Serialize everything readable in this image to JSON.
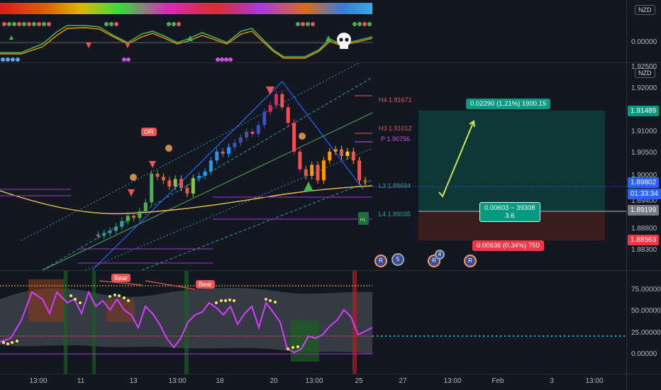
{
  "currency": "NZD",
  "colors": {
    "bg": "#131722",
    "up": "#26a69a",
    "down": "#ef5350",
    "gold": "#f0c419",
    "purple": "#b02cd9"
  },
  "top_indicator": {
    "value_label": "0.00000"
  },
  "price_axis": {
    "ticks": [
      "1.92500",
      "1.92000",
      "1.91000",
      "1.90500",
      "1.90000",
      "1.89400",
      "1.88800",
      "1.88300"
    ],
    "tags": [
      {
        "text": "1.91489",
        "color": "#089981"
      },
      {
        "text": "1.89802",
        "color": "#2962ff"
      },
      {
        "text": "01:33:34",
        "color": "#2962ff"
      },
      {
        "text": "1.89199",
        "color": "#787b86"
      },
      {
        "text": "1.88563",
        "color": "#f23645"
      }
    ]
  },
  "pivots": [
    {
      "label": "H4 1.91671",
      "color": "#ef5350"
    },
    {
      "label": "H3 1.91012",
      "color": "#e05555"
    },
    {
      "label": "P 1.90756",
      "color": "#c850e0"
    },
    {
      "label": "L3 1.89694",
      "color": "#26a69a"
    },
    {
      "label": "L4 1.89035",
      "color": "#26a69a"
    }
  ],
  "position_tool": {
    "target_label": "0.02290 (1.21%) 1900.15",
    "center_line1": "0.00603 ~ 39308",
    "center_line2": "3.6",
    "stop_label": "0.00636 (0.34%) 750"
  },
  "chart_badges": {
    "or": "OR",
    "bear1": "Bear",
    "bear2": "Bear"
  },
  "events": [
    {
      "text": "5"
    },
    {
      "text": "4"
    },
    {
      "text": ""
    }
  ],
  "osc_axis": {
    "ticks": [
      "75.00000",
      "50.00000",
      "25.00000",
      "0.00000"
    ],
    "tag": "25.00000"
  },
  "time_axis": [
    "13:00",
    "11",
    "13",
    "13:00",
    "18",
    "20",
    "13:00",
    "25",
    "27",
    "13:00",
    "Feb",
    "3",
    "13:00"
  ],
  "chart_data": {
    "type": "candlestick",
    "series_main": [
      1.8862,
      1.886,
      1.8866,
      1.8871,
      1.888,
      1.8893,
      1.8905,
      1.89,
      1.8915,
      1.8935,
      1.9,
      1.8993,
      1.8985,
      1.8971,
      1.8988,
      1.8968,
      1.8955,
      1.899,
      1.8995,
      1.9005,
      1.903,
      1.905,
      1.9045,
      1.906,
      1.907,
      1.9082,
      1.9095,
      1.909,
      1.911,
      1.914,
      1.9155,
      1.918,
      1.915,
      1.9115,
      1.905,
      1.901,
      1.8995,
      1.902,
      1.8985,
      1.903,
      1.905,
      1.9055,
      1.904,
      1.905,
      1.903,
      1.8985,
      1.8982
    ]
  }
}
